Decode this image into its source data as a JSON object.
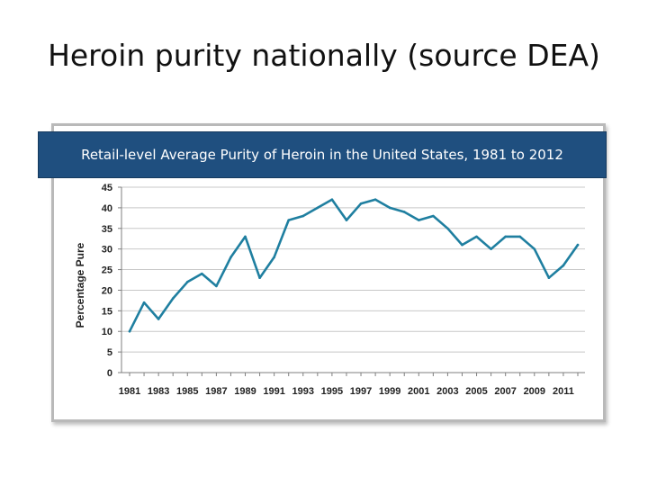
{
  "slide": {
    "title": "Heroin purity nationally (source DEA)"
  },
  "chart_data": {
    "type": "line",
    "title": "Retail-level Average Purity of Heroin in the United States, 1981 to 2012",
    "xlabel": "",
    "ylabel": "Percentage Pure",
    "ylim": [
      0,
      45
    ],
    "yticks": [
      0,
      5,
      10,
      15,
      20,
      25,
      30,
      35,
      40,
      45
    ],
    "xtick_labels": [
      "1981",
      "1983",
      "1985",
      "1987",
      "1989",
      "1991",
      "1993",
      "1995",
      "1997",
      "1999",
      "2001",
      "2003",
      "2005",
      "2007",
      "2009",
      "2011"
    ],
    "grid": true,
    "line_color": "#1f7fa0",
    "series": [
      {
        "x": [
          1981,
          1982,
          1983,
          1984,
          1985,
          1986,
          1987,
          1988,
          1989,
          1990,
          1991,
          1992,
          1993,
          1994,
          1995,
          1996,
          1997,
          1998,
          1999,
          2000,
          2001,
          2002,
          2003,
          2004,
          2005,
          2006,
          2007,
          2008,
          2009,
          2010,
          2011,
          2012
        ],
        "values": [
          10,
          17,
          13,
          18,
          22,
          24,
          21,
          28,
          33,
          23,
          28,
          37,
          38,
          40,
          42,
          37,
          41,
          42,
          40,
          39,
          37,
          38,
          35,
          31,
          33,
          30,
          33,
          33,
          30,
          23,
          26,
          31
        ]
      }
    ]
  }
}
